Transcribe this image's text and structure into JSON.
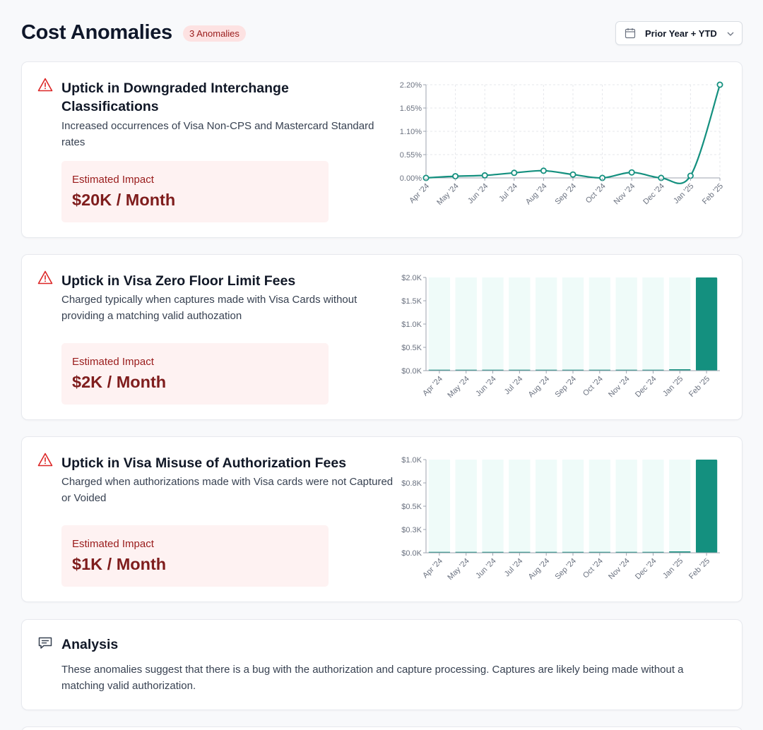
{
  "header": {
    "title": "Cost Anomalies",
    "badge": "3 Anomalies",
    "period": "Prior Year + YTD"
  },
  "colors": {
    "teal": "#14907f",
    "teal_light": "#effbf9",
    "red": "#dc2626"
  },
  "cards": [
    {
      "title": "Uptick in Downgraded Interchange Classifications",
      "description": "Increased occurrences of Visa Non-CPS and Mastercard Standard rates",
      "impact_label": "Estimated Impact",
      "impact_value": "$20K / Month"
    },
    {
      "title": "Uptick in Visa Zero Floor Limit Fees",
      "description": "Charged typically when captures made with Visa Cards without providing a matching valid authozation",
      "impact_label": "Estimated Impact",
      "impact_value": "$2K / Month"
    },
    {
      "title": "Uptick in Visa Misuse of Authorization Fees",
      "description": "Charged when authorizations made with Visa cards were not Captured or Voided",
      "impact_label": "Estimated Impact",
      "impact_value": "$1K / Month"
    }
  ],
  "analysis": {
    "title": "Analysis",
    "text": "These anomalies suggest that there is a bug with the authorization and capture processing. Captures are likely being made without a matching valid authorization."
  },
  "chart_data": [
    {
      "type": "line",
      "categories": [
        "Apr '24",
        "May '24",
        "Jun '24",
        "Jul '24",
        "Aug '24",
        "Sep '24",
        "Oct '24",
        "Nov '24",
        "Dec '24",
        "Jan '25",
        "Feb '25"
      ],
      "values": [
        0.0,
        0.04,
        0.06,
        0.12,
        0.17,
        0.08,
        0.0,
        0.13,
        0.0,
        0.05,
        2.2
      ],
      "yticks": [
        "0.00%",
        "0.55%",
        "1.10%",
        "1.65%",
        "2.20%"
      ],
      "ylim": [
        0,
        2.2
      ],
      "grid": true
    },
    {
      "type": "bar",
      "categories": [
        "Apr '24",
        "May '24",
        "Jun '24",
        "Jul '24",
        "Aug '24",
        "Sep '24",
        "Oct '24",
        "Nov '24",
        "Dec '24",
        "Jan '25",
        "Feb '25"
      ],
      "values": [
        0.02,
        0.02,
        0.02,
        0.02,
        0.02,
        0.02,
        0.02,
        0.02,
        0.02,
        0.03,
        2.0
      ],
      "yticks": [
        "$0.0K",
        "$0.5K",
        "$1.0K",
        "$1.5K",
        "$2.0K"
      ],
      "ylim": [
        0,
        2.0
      ],
      "grid": false
    },
    {
      "type": "bar",
      "categories": [
        "Apr '24",
        "May '24",
        "Jun '24",
        "Jul '24",
        "Aug '24",
        "Sep '24",
        "Oct '24",
        "Nov '24",
        "Dec '24",
        "Jan '25",
        "Feb '25"
      ],
      "values": [
        0.01,
        0.01,
        0.01,
        0.01,
        0.01,
        0.01,
        0.01,
        0.01,
        0.01,
        0.015,
        1.0
      ],
      "yticks": [
        "$0.0K",
        "$0.3K",
        "$0.5K",
        "$0.8K",
        "$1.0K"
      ],
      "ylim": [
        0,
        1.0
      ],
      "grid": false
    }
  ]
}
